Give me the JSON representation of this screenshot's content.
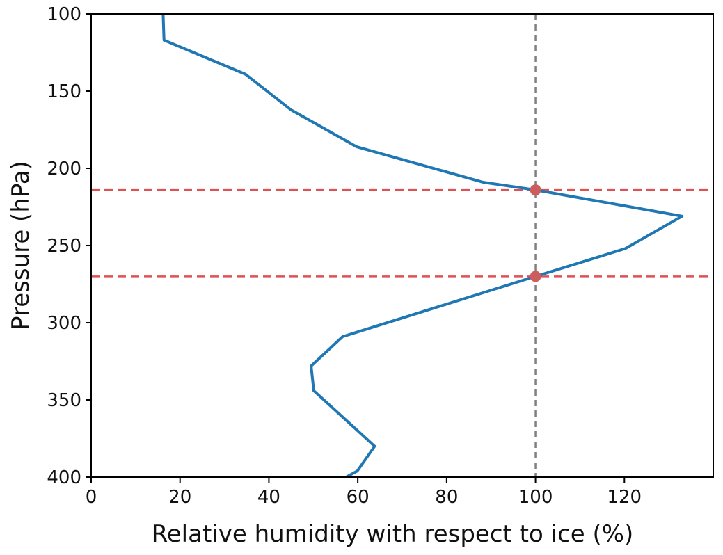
{
  "chart_data": {
    "type": "line",
    "title": "",
    "xlabel": "Relative humidity with respect to ice (%)",
    "ylabel": "Pressure (hPa)",
    "xlim": [
      0,
      140
    ],
    "ylim": [
      400,
      100
    ],
    "y_inverted": true,
    "grid": false,
    "x_ticks": [
      0,
      20,
      40,
      60,
      80,
      100,
      120
    ],
    "y_ticks": [
      100,
      150,
      200,
      250,
      300,
      350,
      400
    ],
    "series": [
      {
        "color": "#1f77b4",
        "points": [
          [
            16.2,
            100
          ],
          [
            16.4,
            117
          ],
          [
            34.7,
            139
          ],
          [
            44.9,
            162
          ],
          [
            59.7,
            186
          ],
          [
            88.2,
            209
          ],
          [
            100.0,
            214
          ],
          [
            133.0,
            231
          ],
          [
            120.2,
            252
          ],
          [
            100.0,
            270
          ],
          [
            56.6,
            309
          ],
          [
            49.5,
            328
          ],
          [
            50.1,
            344
          ],
          [
            63.8,
            380
          ],
          [
            59.9,
            396
          ],
          [
            57.4,
            400
          ]
        ]
      }
    ],
    "reference_lines": {
      "vertical": {
        "x": 100,
        "color": "#808080",
        "style": "dashed"
      },
      "horizontal": [
        {
          "y": 214,
          "color": "#d62728",
          "style": "dashed"
        },
        {
          "y": 270,
          "color": "#d62728",
          "style": "dashed"
        }
      ]
    },
    "markers": [
      {
        "x": 100,
        "y": 214,
        "color": "#cd5c5c"
      },
      {
        "x": 100,
        "y": 270,
        "color": "#cd5c5c"
      }
    ]
  }
}
